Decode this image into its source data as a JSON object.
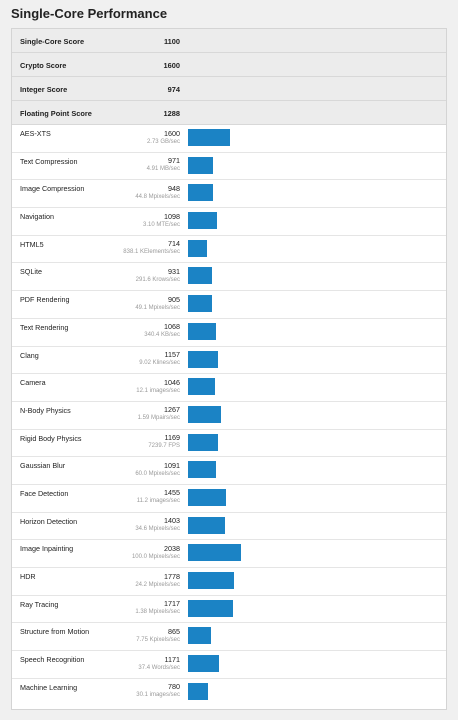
{
  "title": "Single-Core Performance",
  "colors": {
    "bar": "#1b83c5",
    "summary_bg": "#ececec"
  },
  "summary": [
    {
      "label": "Single-Core Score",
      "value": "1100"
    },
    {
      "label": "Crypto Score",
      "value": "1600"
    },
    {
      "label": "Integer Score",
      "value": "974"
    },
    {
      "label": "Floating Point Score",
      "value": "1288"
    }
  ],
  "benchmarks": [
    {
      "name": "AES-XTS",
      "score": "1600",
      "unit": "2.73 GB/sec"
    },
    {
      "name": "Text Compression",
      "score": "971",
      "unit": "4.91 MB/sec"
    },
    {
      "name": "Image Compression",
      "score": "948",
      "unit": "44.8 Mpixels/sec"
    },
    {
      "name": "Navigation",
      "score": "1098",
      "unit": "3.10 MTE/sec"
    },
    {
      "name": "HTML5",
      "score": "714",
      "unit": "838.1 KElements/sec"
    },
    {
      "name": "SQLite",
      "score": "931",
      "unit": "291.6 Krows/sec"
    },
    {
      "name": "PDF Rendering",
      "score": "905",
      "unit": "49.1 Mpixels/sec"
    },
    {
      "name": "Text Rendering",
      "score": "1068",
      "unit": "340.4 KB/sec"
    },
    {
      "name": "Clang",
      "score": "1157",
      "unit": "9.02 Klines/sec"
    },
    {
      "name": "Camera",
      "score": "1046",
      "unit": "12.1 images/sec"
    },
    {
      "name": "N-Body Physics",
      "score": "1267",
      "unit": "1.59 Mpairs/sec"
    },
    {
      "name": "Rigid Body Physics",
      "score": "1169",
      "unit": "7239.7 FPS"
    },
    {
      "name": "Gaussian Blur",
      "score": "1091",
      "unit": "60.0 Mpixels/sec"
    },
    {
      "name": "Face Detection",
      "score": "1455",
      "unit": "11.2 images/sec"
    },
    {
      "name": "Horizon Detection",
      "score": "1403",
      "unit": "34.6 Mpixels/sec"
    },
    {
      "name": "Image Inpainting",
      "score": "2038",
      "unit": "100.0 Mpixels/sec"
    },
    {
      "name": "HDR",
      "score": "1778",
      "unit": "24.2 Mpixels/sec"
    },
    {
      "name": "Ray Tracing",
      "score": "1717",
      "unit": "1.38 Mpixels/sec"
    },
    {
      "name": "Structure from Motion",
      "score": "865",
      "unit": "7.75 Kpixels/sec"
    },
    {
      "name": "Speech Recognition",
      "score": "1171",
      "unit": "37.4 Words/sec"
    },
    {
      "name": "Machine Learning",
      "score": "780",
      "unit": "30.1 images/sec"
    }
  ]
}
